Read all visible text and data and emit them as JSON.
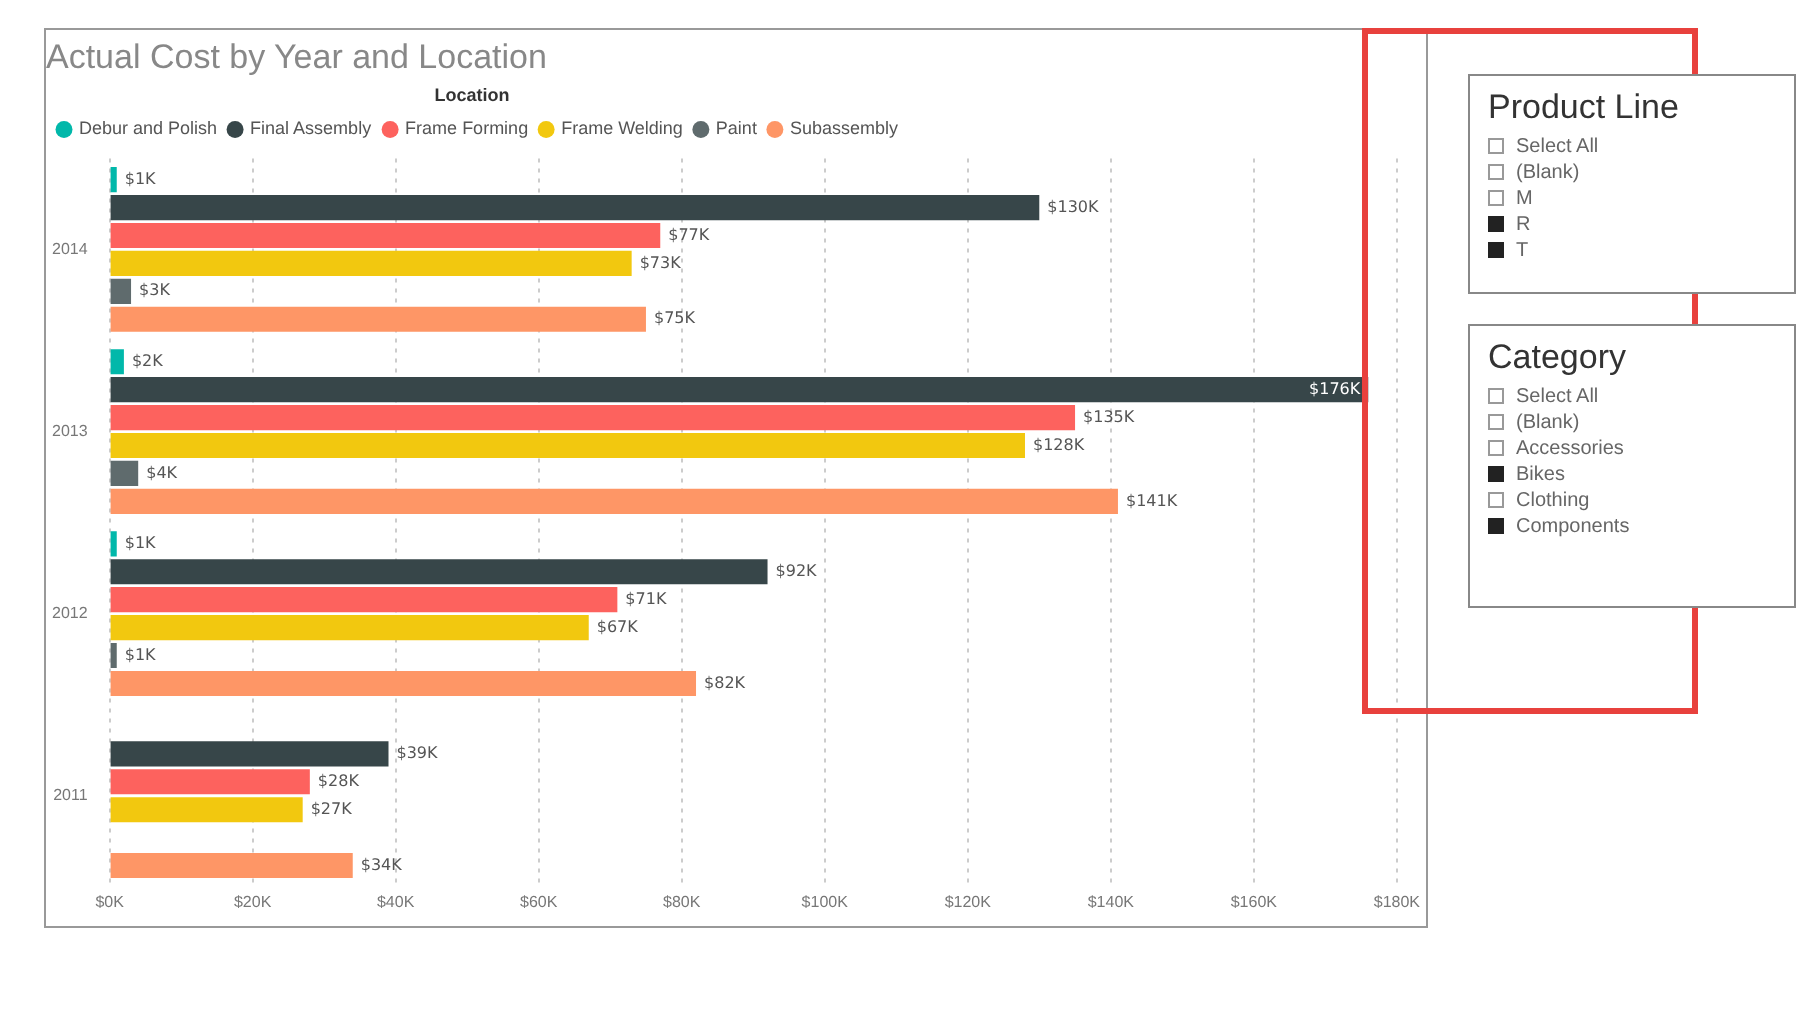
{
  "chart_data": [
    {
      "type": "bar",
      "orientation": "horizontal",
      "title": "Actual Cost by Year and Location",
      "legend_title": "Location",
      "legend": "top left",
      "grid": "x",
      "categories": [
        "2014",
        "2013",
        "2012",
        "2011"
      ],
      "series": [
        {
          "name": "Debur and Polish",
          "color": "#01b8aa",
          "values": [
            1000,
            2000,
            1000,
            null
          ],
          "value_labels": [
            "$1K",
            "$2K",
            "$1K",
            null
          ]
        },
        {
          "name": "Final Assembly",
          "color": "#374649",
          "values": [
            130000,
            176000,
            92000,
            39000
          ],
          "value_labels": [
            "$130K",
            "$176K",
            "$92K",
            "$39K"
          ]
        },
        {
          "name": "Frame Forming",
          "color": "#fd625e",
          "values": [
            77000,
            135000,
            71000,
            28000
          ],
          "value_labels": [
            "$77K",
            "$135K",
            "$71K",
            "$28K"
          ]
        },
        {
          "name": "Frame Welding",
          "color": "#f2c80f",
          "values": [
            73000,
            128000,
            67000,
            27000
          ],
          "value_labels": [
            "$73K",
            "$128K",
            "$67K",
            "$27K"
          ]
        },
        {
          "name": "Paint",
          "color": "#5f6b6d",
          "values": [
            3000,
            4000,
            1000,
            null
          ],
          "value_labels": [
            "$3K",
            "$4K",
            "$1K",
            null
          ]
        },
        {
          "name": "Subassembly",
          "color": "#fe9666",
          "values": [
            75000,
            141000,
            82000,
            34000
          ],
          "value_labels": [
            "$75K",
            "$141K",
            "$82K",
            "$34K"
          ]
        }
      ],
      "xlim": [
        0,
        180000
      ],
      "xticks": [
        {
          "value": 0,
          "label": "$0K"
        },
        {
          "value": 20000,
          "label": "$20K"
        },
        {
          "value": 40000,
          "label": "$40K"
        },
        {
          "value": 60000,
          "label": "$60K"
        },
        {
          "value": 80000,
          "label": "$80K"
        },
        {
          "value": 100000,
          "label": "$100K"
        },
        {
          "value": 120000,
          "label": "$120K"
        },
        {
          "value": 140000,
          "label": "$140K"
        },
        {
          "value": 160000,
          "label": "$160K"
        },
        {
          "value": 180000,
          "label": "$180K"
        }
      ]
    },
    {
      "type": "other",
      "title": "Product Line",
      "annotations": [
        "Select All",
        "(Blank)",
        "M",
        "R",
        "T"
      ]
    },
    {
      "type": "other",
      "title": "Category",
      "annotations": [
        "Select All",
        "(Blank)",
        "Accessories",
        "Bikes",
        "Clothing",
        "Components"
      ]
    }
  ]
}
